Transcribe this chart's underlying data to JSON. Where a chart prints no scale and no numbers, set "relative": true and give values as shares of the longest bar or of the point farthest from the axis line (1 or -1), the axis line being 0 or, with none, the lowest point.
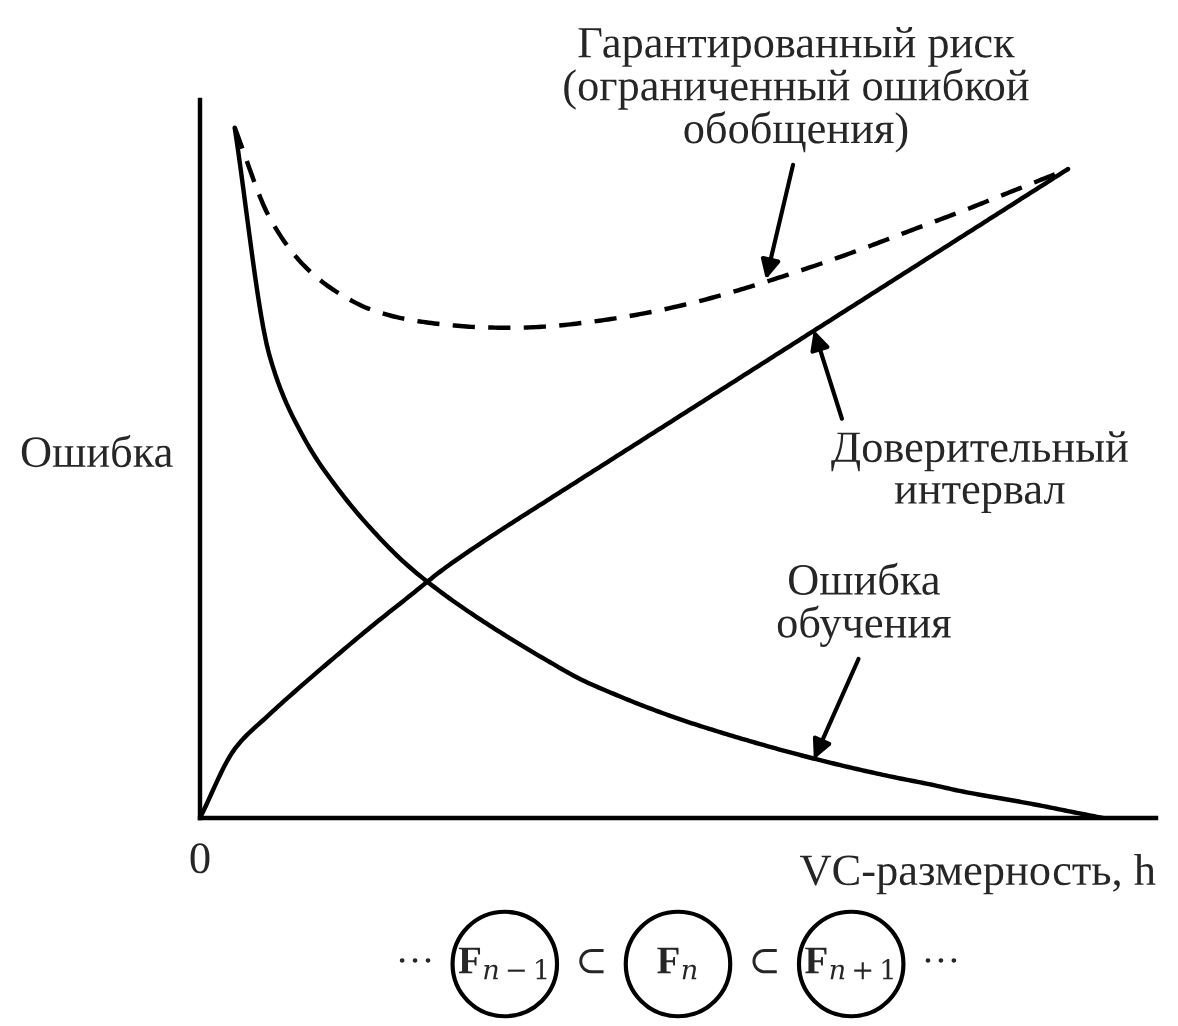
{
  "chart_data": {
    "type": "line",
    "relative": true,
    "xlabel": "VC-размерность, h",
    "ylabel": "Ошибка",
    "categories": [
      null,
      null,
      null,
      null,
      null,
      null,
      null,
      null,
      null,
      null,
      null,
      null,
      null,
      null,
      null,
      null,
      null,
      null,
      null,
      null,
      null,
      null,
      null,
      null,
      null,
      null,
      null
    ],
    "series": [
      {
        "color": "#000000",
        "line_style": "dashed",
        "values": [
          null,
          1.0,
          0.87,
          0.8,
          0.76,
          0.735,
          0.722,
          0.715,
          0.711,
          0.71,
          0.712,
          0.717,
          0.724,
          0.733,
          0.744,
          0.757,
          0.772,
          0.788,
          0.805,
          0.823,
          0.842,
          0.861,
          0.88,
          0.9,
          0.92,
          0.94,
          null
        ]
      },
      {
        "color": "#000000",
        "line_style": "solid",
        "values": [
          0,
          0.1,
          0.15,
          0.195,
          0.238,
          0.28,
          0.32,
          0.36,
          0.395,
          0.428,
          0.46,
          0.492,
          0.524,
          0.556,
          0.588,
          0.62,
          0.652,
          0.684,
          0.716,
          0.748,
          0.78,
          0.812,
          0.844,
          0.876,
          0.908,
          0.94,
          null
        ]
      },
      {
        "color": "#000000",
        "line_style": "solid",
        "values": [
          null,
          1.0,
          0.67,
          0.55,
          0.475,
          0.415,
          0.365,
          0.325,
          0.29,
          0.258,
          0.228,
          0.2,
          0.178,
          0.158,
          0.14,
          0.124,
          0.109,
          0.095,
          0.082,
          0.07,
          0.059,
          0.049,
          0.038,
          0.029,
          0.02,
          0.01,
          0
        ]
      }
    ],
    "annotations": [
      {
        "text": "Гарантированный риск\n(ограниченный ошибкой\nобобщения)",
        "y": 0.78
      },
      "Доверительный\nинтервал",
      {
        "text": "Ошибка\nобучения",
        "y": 0.085
      },
      "0",
      "··· F$_{n−1}$ ⊂ F$_{n}$ ⊂ F$_{n+1}$ ···"
    ]
  }
}
